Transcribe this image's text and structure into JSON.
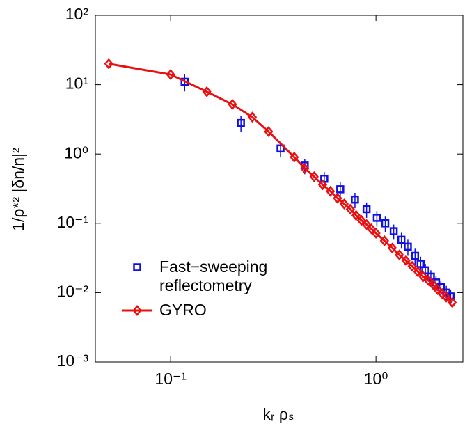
{
  "chart_data": {
    "type": "scatter",
    "xlabel": "kᵣ ρₛ",
    "ylabel": "1/ρ*² |δn/n|²",
    "xscale": "log",
    "yscale": "log",
    "xlim": [
      0.043,
      2.65
    ],
    "ylim": [
      0.001,
      100
    ],
    "xticks": [
      {
        "value": 0.1,
        "label": "10⁻¹"
      },
      {
        "value": 1,
        "label": "10⁰"
      }
    ],
    "yticks": [
      {
        "value": 0.001,
        "label": "10⁻³"
      },
      {
        "value": 0.01,
        "label": "10⁻²"
      },
      {
        "value": 0.1,
        "label": "10⁻¹"
      },
      {
        "value": 1,
        "label": "10⁰"
      },
      {
        "value": 10,
        "label": "10¹"
      },
      {
        "value": 100,
        "label": "10²"
      }
    ],
    "legend": "lower left",
    "series": [
      {
        "name": "Fast−sweeping reflectometry",
        "color": "#1010e0",
        "marker": "square",
        "line": false,
        "x": [
          0.117,
          0.22,
          0.343,
          0.45,
          0.56,
          0.67,
          0.79,
          0.9,
          1.01,
          1.11,
          1.22,
          1.33,
          1.43,
          1.55,
          1.65,
          1.74,
          1.85,
          1.96,
          2.07,
          2.2,
          2.31
        ],
        "values": [
          11,
          2.8,
          1.2,
          0.68,
          0.44,
          0.31,
          0.22,
          0.16,
          0.12,
          0.1,
          0.077,
          0.058,
          0.046,
          0.034,
          0.026,
          0.021,
          0.017,
          0.014,
          0.012,
          0.01,
          0.0088
        ],
        "errors": [
          3,
          0.7,
          0.3,
          0.17,
          0.11,
          0.08,
          0.055,
          0.04,
          0.03,
          0.025,
          0.019,
          0.015,
          0.012,
          0.009,
          0.007,
          0.005,
          0.004,
          0.0035,
          0.003,
          0.0025,
          0.0022
        ]
      },
      {
        "name": "GYRO",
        "color": "#e81010",
        "marker": "diamond",
        "line": true,
        "x": [
          0.05,
          0.1,
          0.15,
          0.2,
          0.25,
          0.3,
          0.4,
          0.45,
          0.5,
          0.55,
          0.6,
          0.65,
          0.7,
          0.75,
          0.8,
          0.85,
          0.9,
          0.95,
          1.0,
          1.1,
          1.2,
          1.3,
          1.4,
          1.5,
          1.6,
          1.7,
          1.8,
          1.9,
          2.0,
          2.1,
          2.2,
          2.35
        ],
        "values": [
          20,
          14,
          7.9,
          5.2,
          3.4,
          2.1,
          0.9,
          0.62,
          0.47,
          0.36,
          0.29,
          0.23,
          0.19,
          0.16,
          0.13,
          0.11,
          0.096,
          0.083,
          0.072,
          0.056,
          0.044,
          0.035,
          0.029,
          0.024,
          0.02,
          0.017,
          0.015,
          0.013,
          0.011,
          0.0097,
          0.0086,
          0.0072
        ]
      }
    ]
  }
}
